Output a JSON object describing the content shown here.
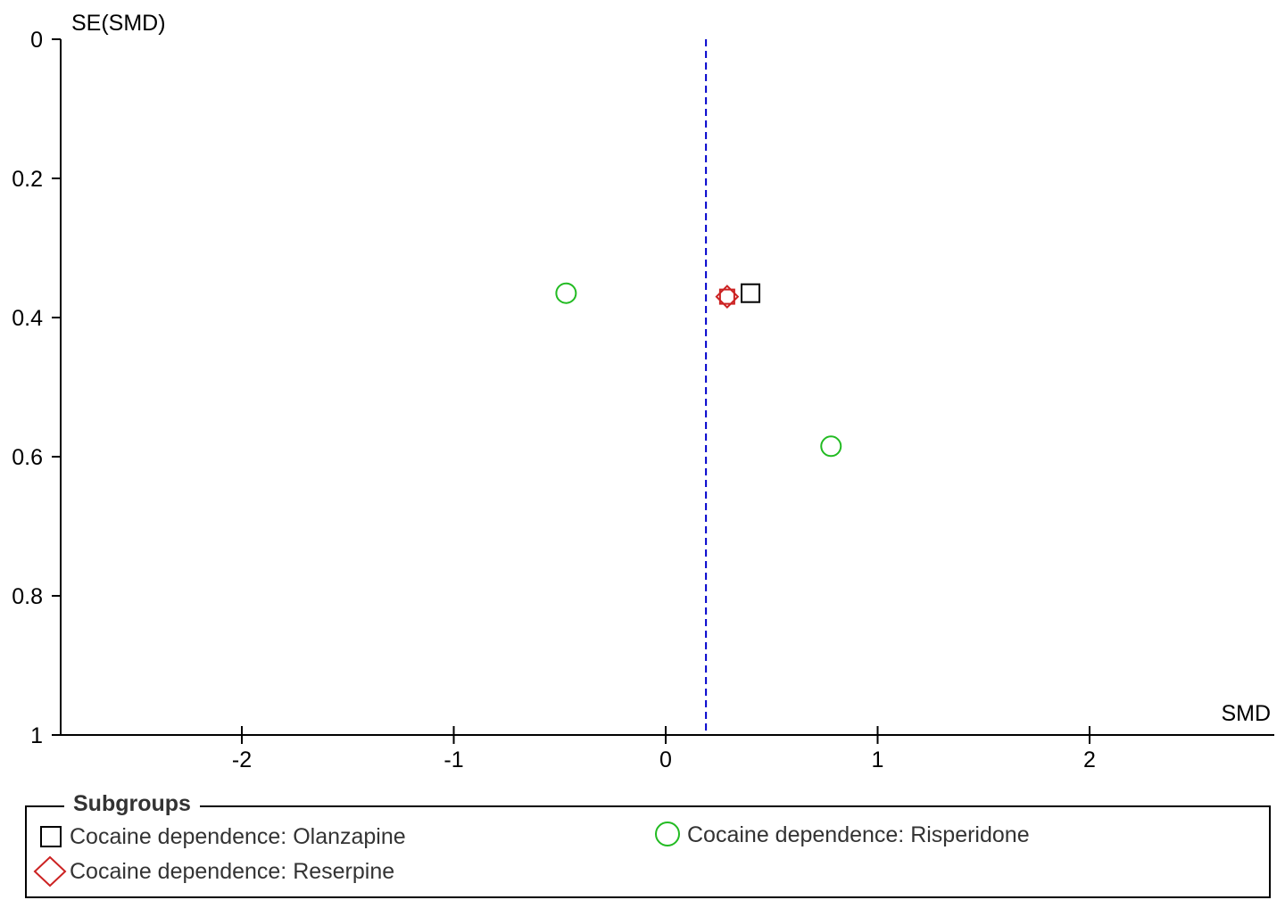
{
  "chart_data": {
    "type": "scatter",
    "title": "",
    "xlabel": "SMD",
    "ylabel": "SE(SMD)",
    "xlim": [
      -2.9,
      2.9
    ],
    "ylim": [
      0,
      1
    ],
    "y_inverted": true,
    "x_ticks": [
      -2,
      -1,
      0,
      1,
      2
    ],
    "y_ticks": [
      0,
      0.2,
      0.4,
      0.6,
      0.8,
      1
    ],
    "x_tick_labels": [
      "-2",
      "-1",
      "0",
      "1",
      "2"
    ],
    "y_tick_labels": [
      "0",
      "0.2",
      "0.4",
      "0.6",
      "0.8",
      "1"
    ],
    "pooled_estimate": 0.19,
    "pooled_line_color": "#0000cc",
    "grid": false,
    "series": [
      {
        "name": "Cocaine dependence: Olanzapine",
        "marker": "square",
        "color": "#000000",
        "points": [
          {
            "x": 0.4,
            "y": 0.365
          }
        ]
      },
      {
        "name": "Cocaine dependence: Reserpine",
        "marker": "diamond",
        "color": "#cc2222",
        "points": [
          {
            "x": 0.29,
            "y": 0.37
          }
        ]
      },
      {
        "name": "Cocaine dependence: Risperidone",
        "marker": "circle",
        "color": "#22bb22",
        "points": [
          {
            "x": -0.47,
            "y": 0.365
          },
          {
            "x": 0.78,
            "y": 0.585
          }
        ]
      }
    ]
  },
  "legend": {
    "title": "Subgroups",
    "placement": "bottom",
    "items": [
      {
        "label": "Cocaine dependence: Olanzapine",
        "marker": "square",
        "color": "#000000"
      },
      {
        "label": "Cocaine dependence: Reserpine",
        "marker": "diamond",
        "color": "#cc2222"
      },
      {
        "label": "Cocaine dependence: Risperidone",
        "marker": "circle",
        "color": "#22bb22"
      }
    ]
  }
}
